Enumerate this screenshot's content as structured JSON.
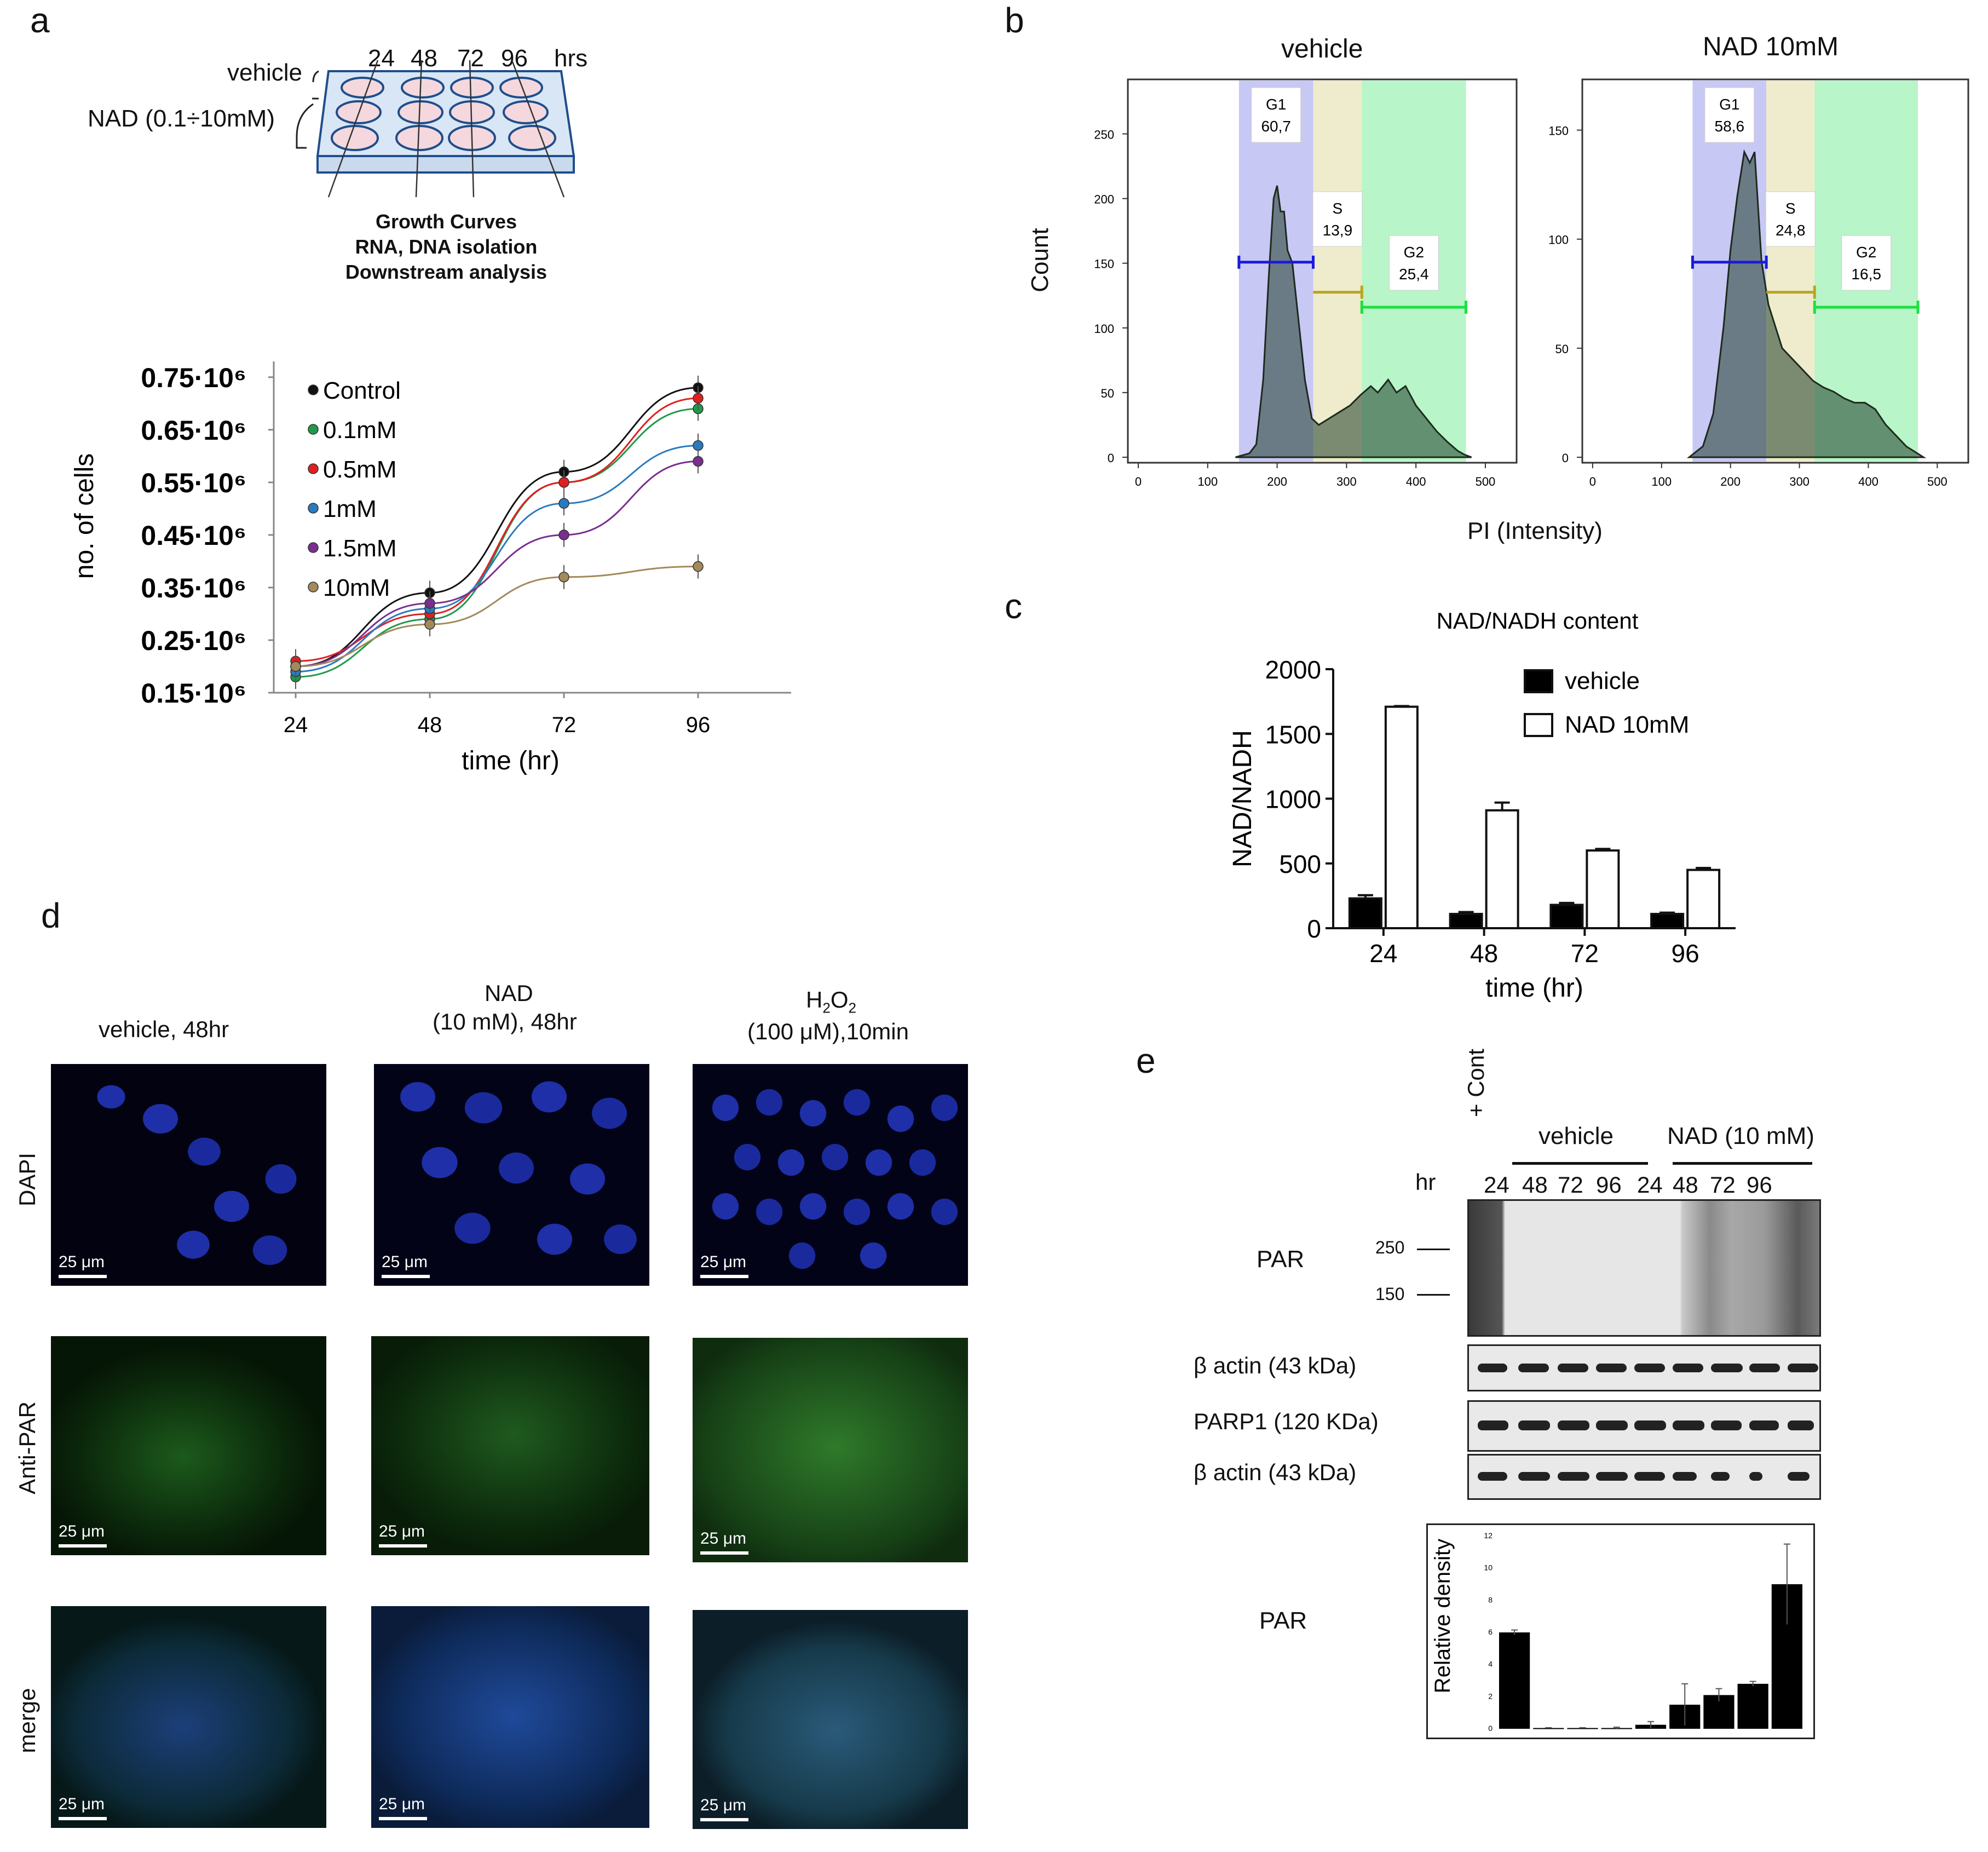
{
  "panel_labels": {
    "a": "a",
    "b": "b",
    "c": "c",
    "d": "d",
    "e": "e"
  },
  "panel_a": {
    "scheme": {
      "vehicle_label": "vehicle",
      "nad_label": "NAD (0.1÷10mM)",
      "times": [
        "24",
        "48",
        "72",
        "96"
      ],
      "hrs_label": "hrs",
      "outputs": [
        "Growth Curves",
        "RNA, DNA isolation",
        "Downstream analysis"
      ]
    },
    "chart_data": {
      "type": "line",
      "x": [
        24,
        48,
        72,
        96
      ],
      "xlabel": "time (hr)",
      "ylabel": "no. of cells",
      "ytick_labels": [
        "0.75·10⁶",
        "0.65·10⁶",
        "0.55·10⁶",
        "0.45·10⁶",
        "0.35·10⁶",
        "0.25·10⁶",
        "0.15·10⁶"
      ],
      "yticks": [
        0.75,
        0.65,
        0.55,
        0.45,
        0.35,
        0.25,
        0.15
      ],
      "ylim": [
        0.15,
        0.78
      ],
      "xtick_labels": [
        "24",
        "48",
        "72",
        "96"
      ],
      "series": [
        {
          "name": "Control",
          "color": "#111111",
          "values": [
            0.2,
            0.34,
            0.57,
            0.73
          ]
        },
        {
          "name": "0.1mM",
          "color": "#1f9a4a",
          "values": [
            0.18,
            0.29,
            0.55,
            0.69
          ]
        },
        {
          "name": "0.5mM",
          "color": "#e02020",
          "values": [
            0.21,
            0.3,
            0.55,
            0.71
          ]
        },
        {
          "name": "1mM",
          "color": "#2a7ac0",
          "values": [
            0.19,
            0.31,
            0.51,
            0.62
          ]
        },
        {
          "name": "1.5mM",
          "color": "#7a2e90",
          "values": [
            0.2,
            0.32,
            0.45,
            0.59
          ]
        },
        {
          "name": "10mM",
          "color": "#a38a5a",
          "values": [
            0.2,
            0.28,
            0.37,
            0.39
          ]
        }
      ]
    }
  },
  "panel_b": {
    "ylabel": "Count",
    "xlabel": "PI (Intensity)",
    "xtick_labels": [
      "0",
      "100",
      "200",
      "300",
      "400",
      "500"
    ],
    "plots": [
      {
        "title": "vehicle",
        "ytick_labels": [
          "0",
          "50",
          "100",
          "150",
          "200",
          "250"
        ],
        "yticks": [
          0,
          50,
          100,
          150,
          200,
          250
        ],
        "ymax": 290,
        "gates": [
          {
            "name": "G1",
            "value": "60,7"
          },
          {
            "name": "S",
            "value": "13,9"
          },
          {
            "name": "G2",
            "value": "25,4"
          }
        ],
        "histogram": [
          [
            140,
            0
          ],
          [
            160,
            3
          ],
          [
            170,
            10
          ],
          [
            180,
            60
          ],
          [
            188,
            140
          ],
          [
            195,
            200
          ],
          [
            200,
            210
          ],
          [
            205,
            190
          ],
          [
            210,
            190
          ],
          [
            215,
            160
          ],
          [
            222,
            150
          ],
          [
            230,
            110
          ],
          [
            240,
            60
          ],
          [
            250,
            30
          ],
          [
            260,
            25
          ],
          [
            275,
            30
          ],
          [
            290,
            35
          ],
          [
            305,
            40
          ],
          [
            320,
            48
          ],
          [
            335,
            55
          ],
          [
            345,
            50
          ],
          [
            360,
            60
          ],
          [
            372,
            50
          ],
          [
            385,
            55
          ],
          [
            400,
            40
          ],
          [
            415,
            30
          ],
          [
            430,
            20
          ],
          [
            445,
            12
          ],
          [
            460,
            5
          ],
          [
            470,
            2
          ],
          [
            480,
            0
          ]
        ]
      },
      {
        "title": "NAD 10mM",
        "ytick_labels": [
          "0",
          "50",
          "100",
          "150"
        ],
        "yticks": [
          0,
          50,
          100,
          150
        ],
        "ymax": 172,
        "gates": [
          {
            "name": "G1",
            "value": "58,6"
          },
          {
            "name": "S",
            "value": "24,8"
          },
          {
            "name": "G2",
            "value": "16,5"
          }
        ],
        "histogram": [
          [
            140,
            0
          ],
          [
            160,
            5
          ],
          [
            175,
            20
          ],
          [
            190,
            60
          ],
          [
            200,
            95
          ],
          [
            210,
            120
          ],
          [
            220,
            140
          ],
          [
            228,
            135
          ],
          [
            235,
            140
          ],
          [
            245,
            90
          ],
          [
            255,
            70
          ],
          [
            265,
            60
          ],
          [
            275,
            50
          ],
          [
            290,
            45
          ],
          [
            305,
            40
          ],
          [
            320,
            35
          ],
          [
            335,
            32
          ],
          [
            350,
            30
          ],
          [
            365,
            27
          ],
          [
            380,
            25
          ],
          [
            395,
            25
          ],
          [
            410,
            22
          ],
          [
            425,
            15
          ],
          [
            440,
            10
          ],
          [
            455,
            5
          ],
          [
            470,
            2
          ],
          [
            480,
            0
          ]
        ]
      }
    ]
  },
  "panel_c": {
    "chart_data": {
      "type": "bar",
      "title": "NAD/NADH content",
      "categories": [
        "24",
        "48",
        "72",
        "96"
      ],
      "xlabel": "time (hr)",
      "ylabel": "NAD/NADH",
      "ylim": [
        0,
        2000
      ],
      "ytick_labels": [
        "2000",
        "1500",
        "1000",
        "500",
        "0"
      ],
      "yticks": [
        2000,
        1500,
        1000,
        500,
        0
      ],
      "series": [
        {
          "name": "vehicle",
          "fill": "#000000",
          "values": [
            230,
            110,
            180,
            110
          ],
          "errors": [
            25,
            15,
            15,
            10
          ]
        },
        {
          "name": "NAD 10mM",
          "fill": "#ffffff",
          "values": [
            1710,
            910,
            600,
            450
          ],
          "errors": [
            5,
            60,
            12,
            15
          ]
        }
      ]
    }
  },
  "panel_d": {
    "columns": [
      "vehicle, 48hr",
      "NAD",
      "(10 mM), 48hr",
      "H",
      "2",
      "O",
      "2",
      "(100 μM),10min"
    ],
    "rows": [
      "DAPI",
      "Anti-PAR",
      "merge"
    ],
    "scalebar": "25 μm"
  },
  "panel_e": {
    "cont_label": "+ Cont",
    "vehicle_label": "vehicle",
    "nad_label": "NAD (10 mM)",
    "hr_label": "hr",
    "lanes": [
      "24",
      "48",
      "72",
      "96",
      "24",
      "48",
      "72",
      "96"
    ],
    "blot_labels": [
      "PAR",
      "β actin (43 kDa)",
      "PARP1 (120 KDa)",
      "β actin (43 kDa)"
    ],
    "markers": [
      "250",
      "150"
    ],
    "density_row_label": "PAR",
    "chart_data": {
      "type": "bar",
      "ylabel": "Relative density",
      "ylim": [
        0,
        12
      ],
      "ytick_labels": [
        "0",
        "2",
        "4",
        "6",
        "8",
        "10",
        "12"
      ],
      "yticks": [
        0,
        2,
        4,
        6,
        8,
        10,
        12
      ],
      "values": [
        6.0,
        0.05,
        0.05,
        0.05,
        0.25,
        1.5,
        2.1,
        2.8,
        9.0
      ],
      "errors": [
        0.15,
        0.02,
        0.02,
        0.05,
        0.2,
        1.3,
        0.4,
        0.15,
        2.5
      ]
    }
  }
}
